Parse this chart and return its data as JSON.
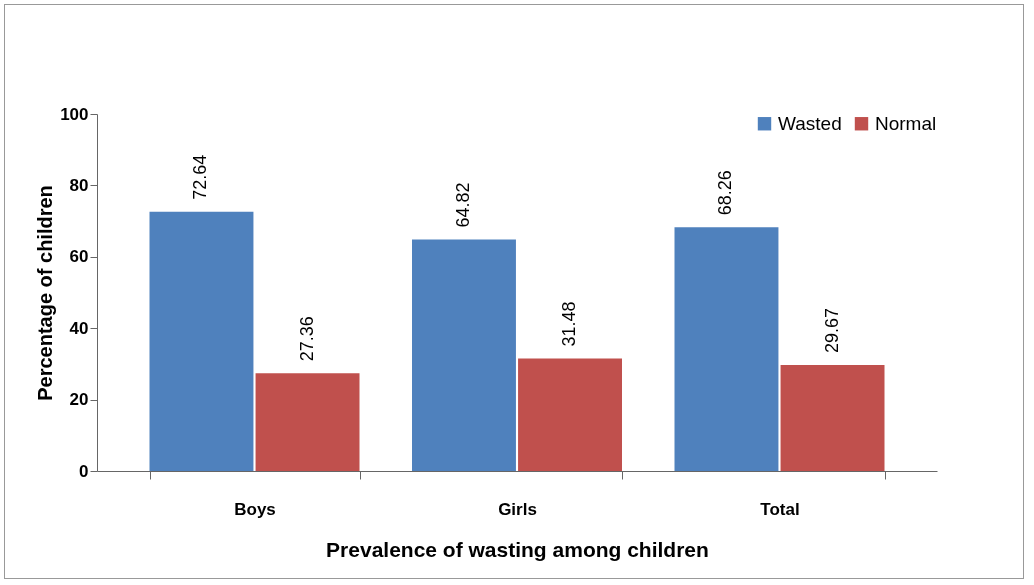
{
  "chart_data": {
    "type": "bar",
    "xlabel": "Prevalence of wasting among children",
    "ylabel": "Percentage of children",
    "categories": [
      "Boys",
      "Girls",
      "Total"
    ],
    "series": [
      {
        "name": "Wasted",
        "color": "#4f81bd",
        "values": [
          72.64,
          64.82,
          68.26
        ]
      },
      {
        "name": "Normal",
        "color": "#c0504d",
        "values": [
          27.36,
          31.48,
          29.67
        ]
      }
    ],
    "ylim": [
      0,
      100
    ],
    "yticks": [
      0,
      20,
      40,
      60,
      80,
      100
    ],
    "legend": "top right",
    "data_labels": true
  }
}
